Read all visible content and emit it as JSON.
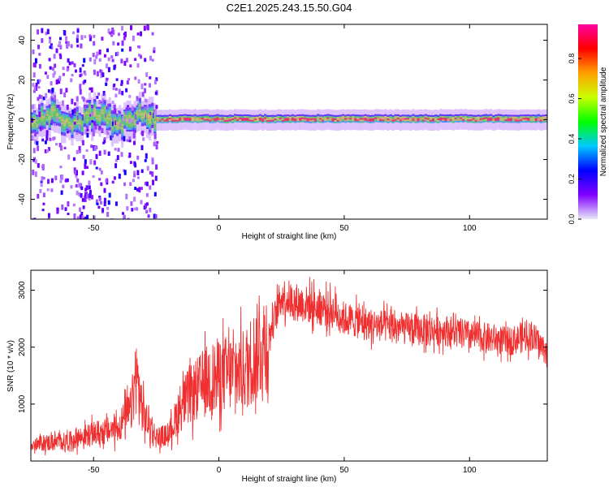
{
  "title": "C2E1.2025.243.15.50.G04",
  "colors": {
    "snr_line": "#f03030",
    "colormap": [
      "#e8e8f8",
      "#8000ff",
      "#0000ff",
      "#00c8ff",
      "#00ff00",
      "#c8ff00",
      "#ffa000",
      "#ff0000",
      "#ff00a0"
    ]
  },
  "chart_data": [
    {
      "type": "heatmap",
      "title": "C2E1.2025.243.15.50.G04",
      "xlabel": "Height of straight line (km)",
      "ylabel": "Frequency (Hz)",
      "xlim": [
        -75,
        131
      ],
      "ylim": [
        -50,
        48
      ],
      "x_ticks": [
        -50,
        0,
        50,
        100
      ],
      "y_ticks": [
        -40,
        -20,
        0,
        20,
        40
      ],
      "colorbar": {
        "label": "Normalized spectral amplitude",
        "range": [
          0,
          0.97
        ],
        "ticks": [
          0.0,
          0.2,
          0.4,
          0.6,
          0.8
        ]
      },
      "features": {
        "ridge_frequency_hz": 0,
        "noisy_region_x": [
          -75,
          -25
        ],
        "ridge_core_amplitude": 0.9
      }
    },
    {
      "type": "line",
      "xlabel": "Height of straight line (km)",
      "ylabel": "SNR (10 * v/v)",
      "xlim": [
        -75,
        131
      ],
      "ylim": [
        0,
        3350
      ],
      "x_ticks": [
        -50,
        0,
        50,
        100
      ],
      "y_ticks": [
        1000,
        2000,
        3000
      ],
      "series": [
        {
          "x": [
            -75,
            -70,
            -65,
            -60,
            -55,
            -50,
            -45,
            -40,
            -35,
            -33,
            -30,
            -25,
            -20,
            -15,
            -10,
            -5,
            0,
            5,
            10,
            15,
            20,
            25,
            30,
            35,
            40,
            45,
            50,
            55,
            60,
            70,
            80,
            90,
            100,
            110,
            115,
            120,
            125,
            131
          ],
          "y": [
            250,
            320,
            330,
            350,
            420,
            480,
            520,
            600,
            900,
            1500,
            800,
            420,
            450,
            1000,
            1200,
            1400,
            1500,
            1550,
            1600,
            1900,
            2200,
            2900,
            2800,
            2750,
            2700,
            2650,
            2500,
            2450,
            2400,
            2350,
            2300,
            2300,
            2200,
            2150,
            2100,
            2150,
            2200,
            1900
          ]
        }
      ]
    }
  ]
}
